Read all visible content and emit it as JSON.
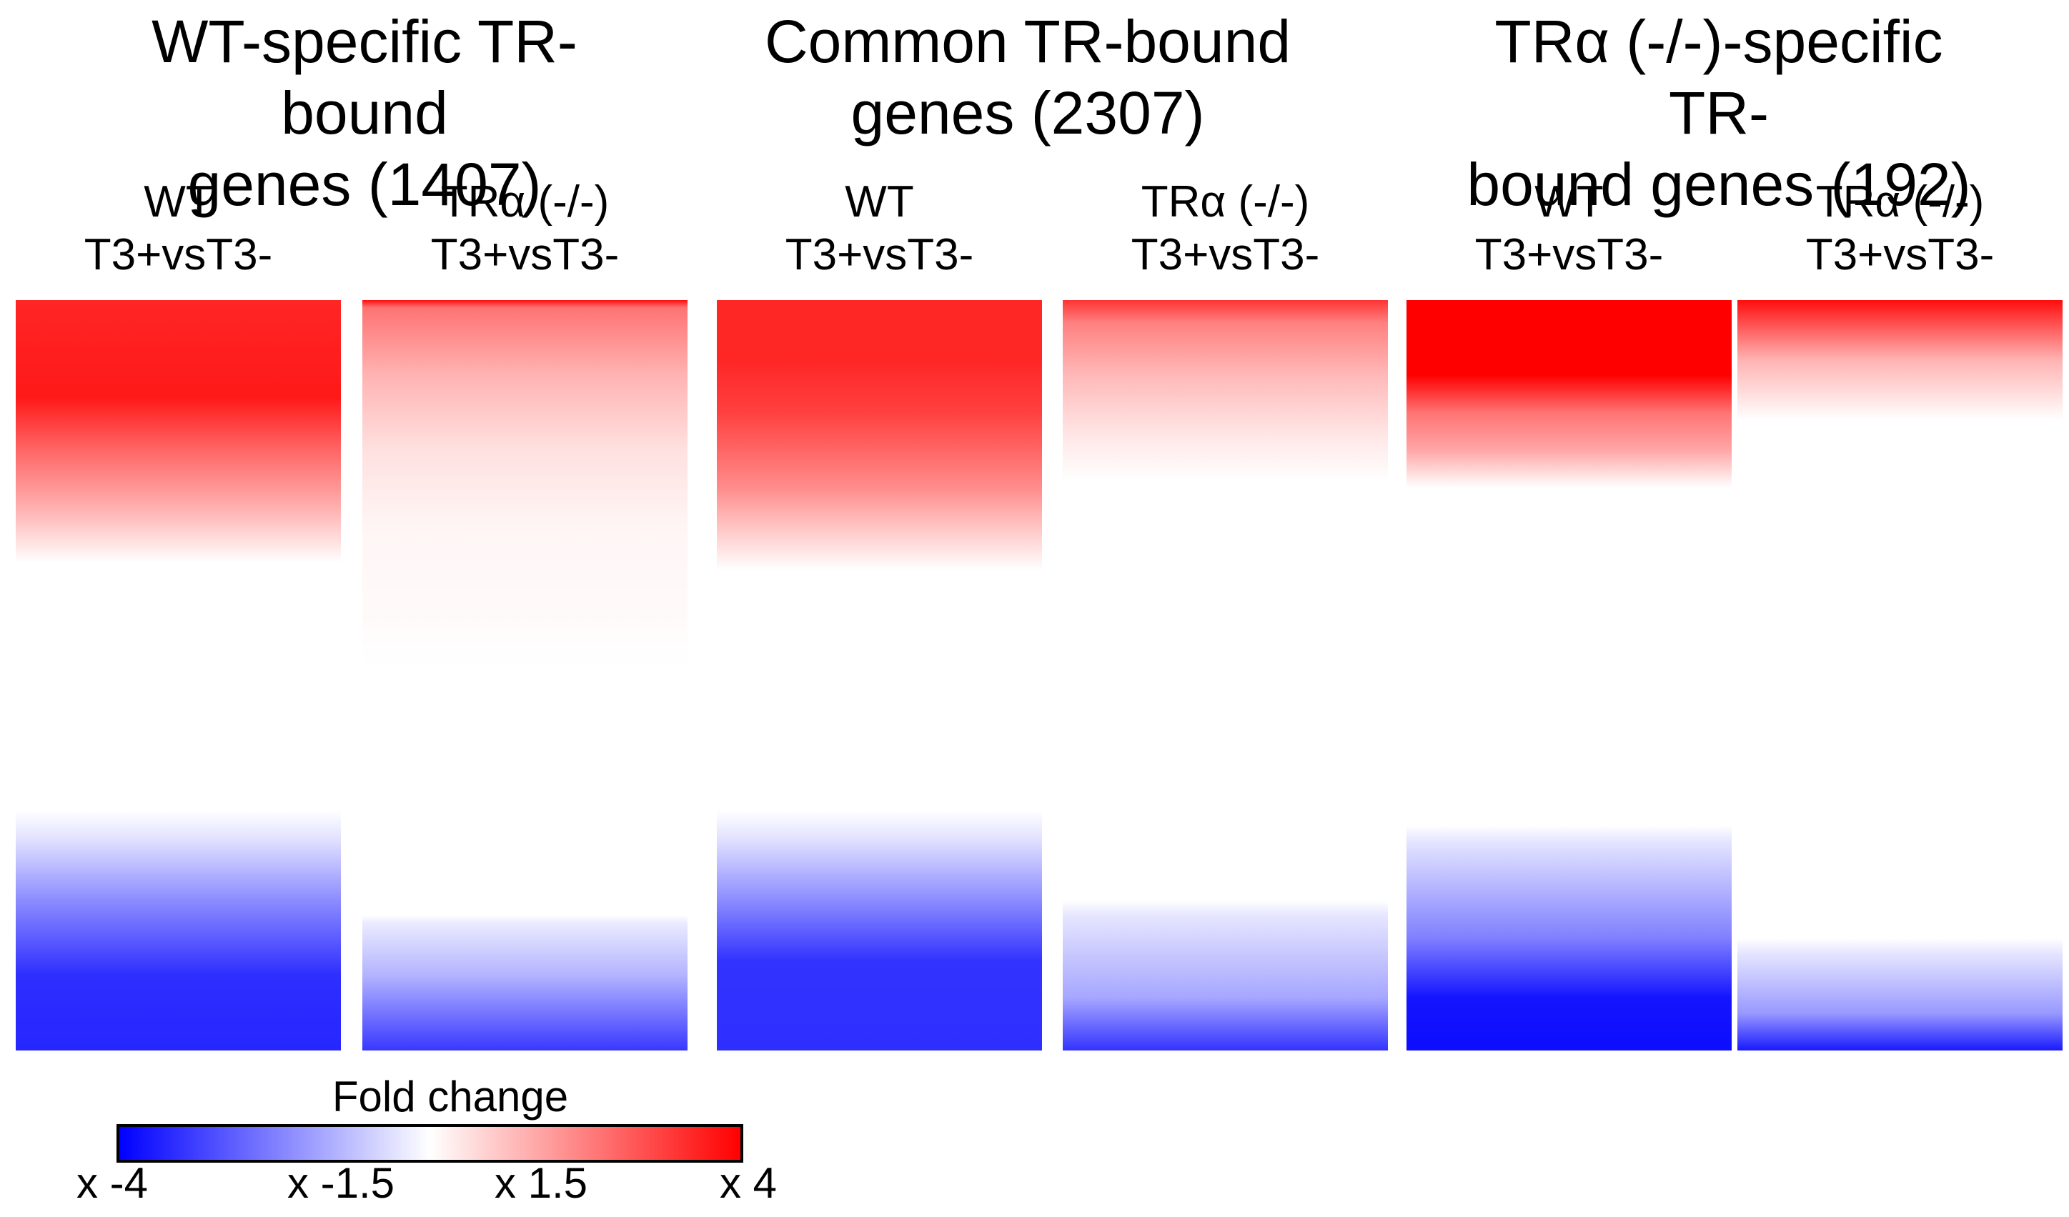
{
  "chart_data": {
    "type": "heatmap",
    "groups": [
      {
        "title": "WT-specific TR-bound\ngenes (1407)",
        "columns": [
          {
            "label": "WT\nT3+vsT3-",
            "profile": [
              [
                0.0,
                0.85
              ],
              [
                0.06,
                0.88
              ],
              [
                0.13,
                0.9
              ],
              [
                0.2,
                0.6
              ],
              [
                0.28,
                0.3
              ],
              [
                0.35,
                0.0
              ],
              [
                0.68,
                0.0
              ],
              [
                0.72,
                -0.12
              ],
              [
                0.8,
                -0.45
              ],
              [
                0.9,
                -0.82
              ],
              [
                1.0,
                -0.85
              ]
            ]
          },
          {
            "label": "TRα (-/-)\nT3+vsT3-",
            "profile": [
              [
                0.0,
                0.95
              ],
              [
                0.01,
                0.55
              ],
              [
                0.1,
                0.3
              ],
              [
                0.2,
                0.12
              ],
              [
                0.3,
                0.04
              ],
              [
                0.42,
                0.02
              ],
              [
                0.49,
                0.0
              ],
              [
                0.82,
                0.0
              ],
              [
                0.83,
                -0.08
              ],
              [
                0.9,
                -0.3
              ],
              [
                1.0,
                -0.78
              ]
            ]
          }
        ]
      },
      {
        "title": "Common TR-bound\ngenes (2307)",
        "columns": [
          {
            "label": "WT\nT3+vsT3-",
            "profile": [
              [
                0.0,
                0.85
              ],
              [
                0.08,
                0.85
              ],
              [
                0.15,
                0.75
              ],
              [
                0.25,
                0.45
              ],
              [
                0.31,
                0.2
              ],
              [
                0.36,
                0.0
              ],
              [
                0.68,
                0.0
              ],
              [
                0.72,
                -0.12
              ],
              [
                0.8,
                -0.45
              ],
              [
                0.88,
                -0.8
              ],
              [
                1.0,
                -0.82
              ]
            ]
          },
          {
            "label": "TRα (-/-)\nT3+vsT3-",
            "profile": [
              [
                0.0,
                0.8
              ],
              [
                0.03,
                0.5
              ],
              [
                0.1,
                0.28
              ],
              [
                0.18,
                0.1
              ],
              [
                0.24,
                0.0
              ],
              [
                0.8,
                0.0
              ],
              [
                0.82,
                -0.1
              ],
              [
                0.93,
                -0.35
              ],
              [
                1.0,
                -0.8
              ]
            ]
          }
        ]
      },
      {
        "title": "TRα (-/-)-specific TR-\nbound genes (192)",
        "columns": [
          {
            "label": "WT\nT3+vsT3-",
            "profile": [
              [
                0.0,
                1.0
              ],
              [
                0.1,
                1.0
              ],
              [
                0.15,
                0.55
              ],
              [
                0.2,
                0.35
              ],
              [
                0.25,
                0.0
              ],
              [
                0.7,
                0.0
              ],
              [
                0.72,
                -0.1
              ],
              [
                0.85,
                -0.5
              ],
              [
                0.93,
                -0.92
              ],
              [
                1.0,
                -0.95
              ]
            ]
          },
          {
            "label": "TRα (-/-)\nT3+vsT3-",
            "profile": [
              [
                0.0,
                0.95
              ],
              [
                0.03,
                0.7
              ],
              [
                0.08,
                0.3
              ],
              [
                0.16,
                0.0
              ],
              [
                0.85,
                0.0
              ],
              [
                0.87,
                -0.1
              ],
              [
                0.95,
                -0.4
              ],
              [
                1.0,
                -0.9
              ]
            ]
          }
        ]
      }
    ],
    "colorbar": {
      "title": "Fold change",
      "tick_labels": [
        "x -4",
        "x -1.5",
        "x 1.5",
        "x 4"
      ],
      "range": [
        -4,
        4
      ],
      "colors": {
        "low": "#0000ff",
        "mid": "#ffffff",
        "high": "#ff0000"
      }
    }
  }
}
